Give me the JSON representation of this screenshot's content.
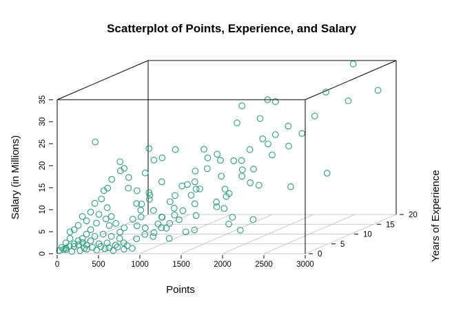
{
  "chart_data": {
    "type": "scatter",
    "subtype": "scatter3d",
    "title": "Scatterplot of Points, Experience, and Salary",
    "xlabel": "Points",
    "ylabel": "Years of Experience",
    "zlabel": "Salary (in Millions)",
    "xlim": [
      0,
      3000
    ],
    "ylim": [
      0,
      20
    ],
    "zlim": [
      0,
      35
    ],
    "x_ticks": [
      "0",
      "500",
      "1000",
      "1500",
      "2000",
      "2500",
      "3000"
    ],
    "y_ticks": [
      "0",
      "5",
      "10",
      "15",
      "20"
    ],
    "z_ticks": [
      "0",
      "5",
      "10",
      "15",
      "20",
      "25",
      "30",
      "35"
    ],
    "grid": true,
    "point_color": "#2a9d7f",
    "point_style": "open circle",
    "points": [
      [
        2700,
        16,
        36
      ],
      [
        2200,
        8,
        31
      ],
      [
        2180,
        5,
        28.5
      ],
      [
        2480,
        14,
        30.5
      ],
      [
        2750,
        14,
        28.5
      ],
      [
        3000,
        16,
        30
      ],
      [
        1850,
        7,
        30.5
      ],
      [
        1900,
        5,
        27.5
      ],
      [
        2050,
        9,
        31
      ],
      [
        2400,
        13,
        25.5
      ],
      [
        2300,
        9,
        25
      ],
      [
        2200,
        8,
        23.5
      ],
      [
        2100,
        7,
        23
      ],
      [
        2000,
        10,
        20.5
      ],
      [
        2300,
        12,
        22
      ],
      [
        2250,
        10,
        20
      ],
      [
        2000,
        6,
        21
      ],
      [
        1900,
        6,
        18.5
      ],
      [
        2050,
        10,
        18
      ],
      [
        2100,
        5,
        17
      ],
      [
        1600,
        4,
        20
      ],
      [
        1700,
        5,
        19
      ],
      [
        1750,
        7,
        18
      ],
      [
        1650,
        3,
        18
      ],
      [
        1800,
        8,
        15.5
      ],
      [
        1500,
        5,
        21.5
      ],
      [
        1500,
        3,
        15
      ],
      [
        1550,
        7,
        19.5
      ],
      [
        1450,
        4,
        17
      ],
      [
        1400,
        2,
        14.5
      ],
      [
        1600,
        7,
        14.5
      ],
      [
        2550,
        5,
        13
      ],
      [
        2550,
        13,
        12.5
      ],
      [
        1550,
        9,
        9
      ],
      [
        1300,
        5,
        13.5
      ],
      [
        1350,
        6,
        12
      ],
      [
        1250,
        3,
        9
      ],
      [
        1200,
        4,
        7
      ],
      [
        1800,
        4,
        8.5
      ],
      [
        1900,
        4,
        6.5
      ],
      [
        2150,
        4,
        6
      ],
      [
        1800,
        5,
        4.5
      ],
      [
        1550,
        2,
        4.5
      ],
      [
        2050,
        3,
        4
      ],
      [
        1500,
        1,
        4.5
      ],
      [
        1300,
        1,
        3
      ],
      [
        1350,
        6,
        6
      ],
      [
        1100,
        3,
        7
      ],
      [
        1150,
        5,
        11
      ],
      [
        1000,
        2,
        23
      ],
      [
        950,
        4,
        19.5
      ],
      [
        900,
        3,
        17
      ],
      [
        1050,
        4,
        20
      ],
      [
        1100,
        6,
        21
      ],
      [
        1100,
        3,
        15
      ],
      [
        1000,
        2,
        13
      ],
      [
        950,
        3,
        11
      ],
      [
        900,
        2,
        9
      ],
      [
        850,
        2,
        10.5
      ],
      [
        800,
        3,
        13
      ],
      [
        750,
        2,
        14
      ],
      [
        700,
        3,
        16
      ],
      [
        700,
        2,
        18.5
      ],
      [
        650,
        2,
        20
      ],
      [
        600,
        3,
        17.5
      ],
      [
        550,
        2,
        16
      ],
      [
        500,
        2,
        14
      ],
      [
        480,
        1,
        12
      ],
      [
        550,
        1,
        10
      ],
      [
        600,
        1,
        8
      ],
      [
        450,
        1,
        8.5
      ],
      [
        400,
        1,
        11
      ],
      [
        400,
        3,
        13
      ],
      [
        350,
        1,
        9
      ],
      [
        300,
        1,
        7
      ],
      [
        350,
        2,
        24.5
      ],
      [
        250,
        1,
        8
      ],
      [
        200,
        1,
        6
      ],
      [
        150,
        1,
        5
      ],
      [
        100,
        1,
        4.5
      ],
      [
        100,
        1,
        3
      ],
      [
        50,
        1,
        2
      ],
      [
        0,
        1,
        1
      ],
      [
        20,
        1,
        0.5
      ],
      [
        50,
        1,
        0.8
      ],
      [
        150,
        1,
        1.2
      ],
      [
        200,
        1,
        2.5
      ],
      [
        250,
        1,
        3
      ],
      [
        300,
        1,
        4
      ],
      [
        350,
        1,
        5
      ],
      [
        420,
        1,
        6.5
      ],
      [
        480,
        2,
        7
      ],
      [
        520,
        2,
        5.5
      ],
      [
        600,
        2,
        6
      ],
      [
        650,
        2,
        4
      ],
      [
        700,
        2,
        5
      ],
      [
        750,
        3,
        6.5
      ],
      [
        800,
        3,
        5
      ],
      [
        850,
        3,
        7
      ],
      [
        900,
        3,
        4.5
      ],
      [
        950,
        4,
        3
      ],
      [
        1000,
        4,
        5
      ],
      [
        1050,
        4,
        6.5
      ],
      [
        1100,
        4,
        4
      ],
      [
        1200,
        5,
        5.5
      ],
      [
        750,
        1,
        2
      ],
      [
        650,
        1,
        1.5
      ],
      [
        550,
        1,
        2
      ],
      [
        450,
        1,
        1.8
      ],
      [
        300,
        1,
        1.5
      ],
      [
        350,
        1,
        2.5
      ],
      [
        400,
        1,
        3.5
      ],
      [
        500,
        1,
        4
      ],
      [
        600,
        1,
        3.5
      ],
      [
        700,
        1,
        3
      ],
      [
        850,
        2,
        2.5
      ],
      [
        950,
        2,
        3.5
      ],
      [
        1050,
        2,
        3
      ],
      [
        1150,
        2,
        5
      ],
      [
        1250,
        2,
        6
      ],
      [
        250,
        0.5,
        0.5
      ],
      [
        300,
        0.5,
        1
      ],
      [
        150,
        0.5,
        0.3
      ],
      [
        0,
        0.5,
        0.5
      ],
      [
        80,
        0.5,
        0.7
      ],
      [
        120,
        0.5,
        1.5
      ],
      [
        180,
        0.5,
        2
      ],
      [
        230,
        0.5,
        1.8
      ],
      [
        280,
        0.5,
        2.3
      ],
      [
        330,
        0.5,
        0.8
      ],
      [
        400,
        0.5,
        1.2
      ],
      [
        450,
        0.5,
        0.6
      ],
      [
        500,
        0.5,
        1.4
      ],
      [
        550,
        0.5,
        0.9
      ],
      [
        600,
        0.5,
        1.1
      ],
      [
        650,
        0.5,
        0.5
      ],
      [
        700,
        0.5,
        1.3
      ],
      [
        780,
        0.5,
        0.8
      ],
      [
        820,
        0.5,
        1.6
      ],
      [
        880,
        0.5,
        1
      ],
      [
        1500,
        3,
        10
      ],
      [
        1400,
        4,
        11.5
      ],
      [
        1450,
        5,
        12.5
      ],
      [
        1300,
        4,
        8
      ],
      [
        1200,
        3,
        10.5
      ],
      [
        1000,
        3,
        8.5
      ],
      [
        900,
        4,
        11.5
      ],
      [
        800,
        4,
        9.5
      ],
      [
        1700,
        6,
        12
      ],
      [
        1650,
        5,
        9.5
      ],
      [
        1750,
        6,
        11
      ],
      [
        1600,
        6,
        8
      ],
      [
        1950,
        7,
        13
      ],
      [
        2000,
        8,
        12
      ],
      [
        1850,
        7,
        14.5
      ]
    ]
  }
}
